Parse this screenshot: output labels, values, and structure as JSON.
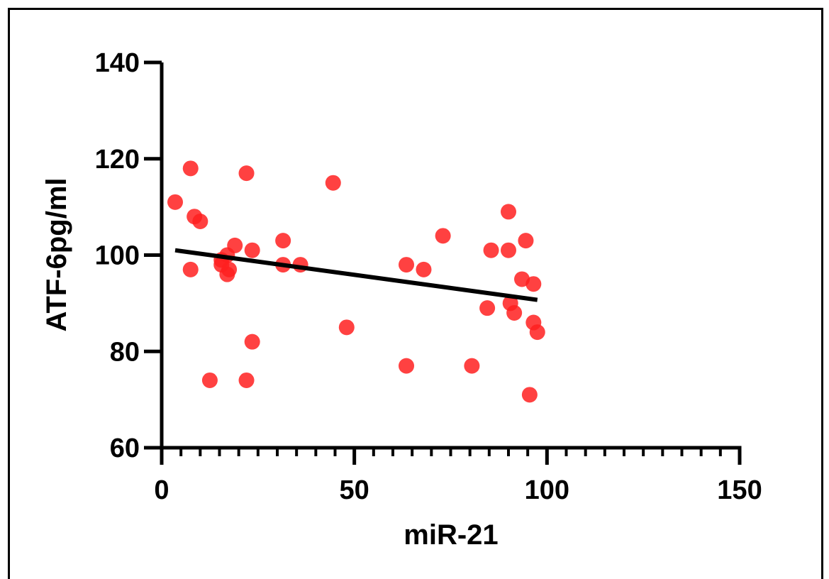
{
  "chart_data": {
    "type": "scatter",
    "title": "",
    "xlabel": "miR-21",
    "ylabel": "ATF-6pg/ml",
    "xlim": [
      0,
      150
    ],
    "ylim": [
      60,
      140
    ],
    "x_ticks": [
      0,
      50,
      100,
      150
    ],
    "x_tick_labels": [
      "0",
      "50",
      "100",
      "150"
    ],
    "y_ticks": [
      60,
      80,
      100,
      120,
      140
    ],
    "y_tick_labels": [
      "60",
      "80",
      "100",
      "120",
      "140"
    ],
    "grid": false,
    "legend": "none",
    "point_color": "#ff2020",
    "line_color": "#000000",
    "points": [
      {
        "x": 3.5,
        "y": 111
      },
      {
        "x": 7.5,
        "y": 118
      },
      {
        "x": 7.5,
        "y": 97
      },
      {
        "x": 8.5,
        "y": 108
      },
      {
        "x": 10.0,
        "y": 107
      },
      {
        "x": 12.5,
        "y": 74
      },
      {
        "x": 15.5,
        "y": 99
      },
      {
        "x": 15.5,
        "y": 98
      },
      {
        "x": 17.0,
        "y": 100
      },
      {
        "x": 17.5,
        "y": 97
      },
      {
        "x": 17.0,
        "y": 96
      },
      {
        "x": 19.0,
        "y": 102
      },
      {
        "x": 22.0,
        "y": 117
      },
      {
        "x": 22.0,
        "y": 74
      },
      {
        "x": 23.5,
        "y": 101
      },
      {
        "x": 23.5,
        "y": 82
      },
      {
        "x": 31.5,
        "y": 103
      },
      {
        "x": 31.5,
        "y": 98
      },
      {
        "x": 36.0,
        "y": 98
      },
      {
        "x": 44.5,
        "y": 115
      },
      {
        "x": 48.0,
        "y": 85
      },
      {
        "x": 63.5,
        "y": 98
      },
      {
        "x": 63.5,
        "y": 77
      },
      {
        "x": 68.0,
        "y": 97
      },
      {
        "x": 73.0,
        "y": 104
      },
      {
        "x": 80.5,
        "y": 77
      },
      {
        "x": 84.5,
        "y": 89
      },
      {
        "x": 85.5,
        "y": 101
      },
      {
        "x": 90.0,
        "y": 109
      },
      {
        "x": 90.0,
        "y": 101
      },
      {
        "x": 90.5,
        "y": 90
      },
      {
        "x": 91.5,
        "y": 88
      },
      {
        "x": 93.5,
        "y": 95
      },
      {
        "x": 94.5,
        "y": 103
      },
      {
        "x": 95.5,
        "y": 71
      },
      {
        "x": 96.5,
        "y": 94
      },
      {
        "x": 96.5,
        "y": 86
      },
      {
        "x": 97.5,
        "y": 84
      }
    ],
    "fit_line": {
      "x": [
        3.5,
        97.5
      ],
      "y": [
        101.0,
        90.7
      ]
    }
  }
}
